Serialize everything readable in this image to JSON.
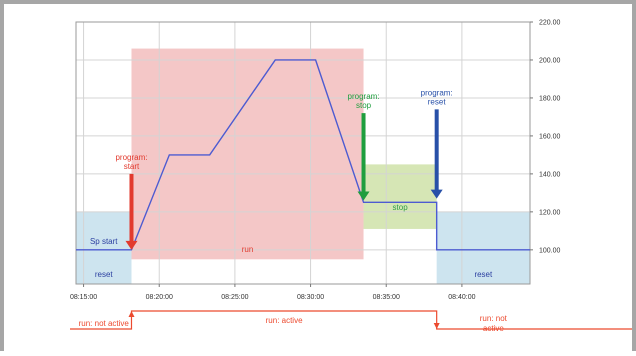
{
  "chart_data": {
    "type": "line",
    "time_axis": {
      "ticks": [
        "08:15:00",
        "08:20:00",
        "08:25:00",
        "08:30:00",
        "08:35:00",
        "08:40:00"
      ],
      "range": [
        "08:14:30",
        "08:44:30"
      ]
    },
    "y_axis": {
      "ticks": [
        "100.00",
        "120.00",
        "140.00",
        "160.00",
        "180.00",
        "200.00",
        "220.00"
      ],
      "range": [
        82,
        220
      ],
      "position": "right"
    },
    "grid": true,
    "setpoint_series": {
      "color": "#4d5bd1",
      "points": [
        {
          "t": "08:14:30",
          "v": 100
        },
        {
          "t": "08:18:10",
          "v": 100
        },
        {
          "t": "08:20:40",
          "v": 150
        },
        {
          "t": "08:23:20",
          "v": 150
        },
        {
          "t": "08:27:40",
          "v": 200
        },
        {
          "t": "08:30:20",
          "v": 200
        },
        {
          "t": "08:33:30",
          "v": 125
        },
        {
          "t": "08:38:20",
          "v": 125
        },
        {
          "t": "08:38:20",
          "v": 100
        },
        {
          "t": "08:44:30",
          "v": 100
        }
      ]
    },
    "regions": [
      {
        "id": "reset-left",
        "label": "reset",
        "extra_label": "Sp start",
        "t0": "08:14:30",
        "t1": "08:18:10",
        "v0": 82,
        "v1": 120,
        "color": "#cde4ef",
        "text_color": "#2b3fa0"
      },
      {
        "id": "run",
        "label": "run",
        "t0": "08:18:10",
        "t1": "08:33:30",
        "v0": 95,
        "v1": 206,
        "color": "#f4c7c7",
        "text_color": "#e23a2e"
      },
      {
        "id": "stop",
        "label": "stop",
        "t0": "08:33:30",
        "t1": "08:38:20",
        "v0": 111,
        "v1": 145,
        "color": "#d6e6b5",
        "text_color": "#2e9e45"
      },
      {
        "id": "reset-right",
        "label": "reset",
        "t0": "08:38:20",
        "t1": "08:44:30",
        "v0": 82,
        "v1": 120,
        "color": "#cde4ef",
        "text_color": "#2b3fa0"
      }
    ],
    "events": [
      {
        "id": "program-start",
        "label": [
          "program:",
          "start"
        ],
        "t": "08:18:10",
        "v_from": 140,
        "v_to": 100,
        "color": "#e23a2e"
      },
      {
        "id": "program-stop",
        "label": [
          "program:",
          "stop"
        ],
        "t": "08:33:30",
        "v_from": 172,
        "v_to": 126,
        "color": "#1f9e3e"
      },
      {
        "id": "program-reset",
        "label": [
          "program:",
          "reset"
        ],
        "t": "08:38:20",
        "v_from": 174,
        "v_to": 127,
        "color": "#2850a8"
      }
    ],
    "run_state": {
      "color": "#ec4a2f",
      "segments": [
        {
          "label": [
            "run: not active"
          ],
          "t0": "08:14:30",
          "t1": "08:18:10",
          "level": "low"
        },
        {
          "label": [
            "run: active"
          ],
          "t0": "08:18:10",
          "t1": "08:38:20",
          "level": "high"
        },
        {
          "label": [
            "run: not",
            "active"
          ],
          "t0": "08:38:20",
          "t1": "08:44:30",
          "level": "low"
        }
      ]
    }
  }
}
